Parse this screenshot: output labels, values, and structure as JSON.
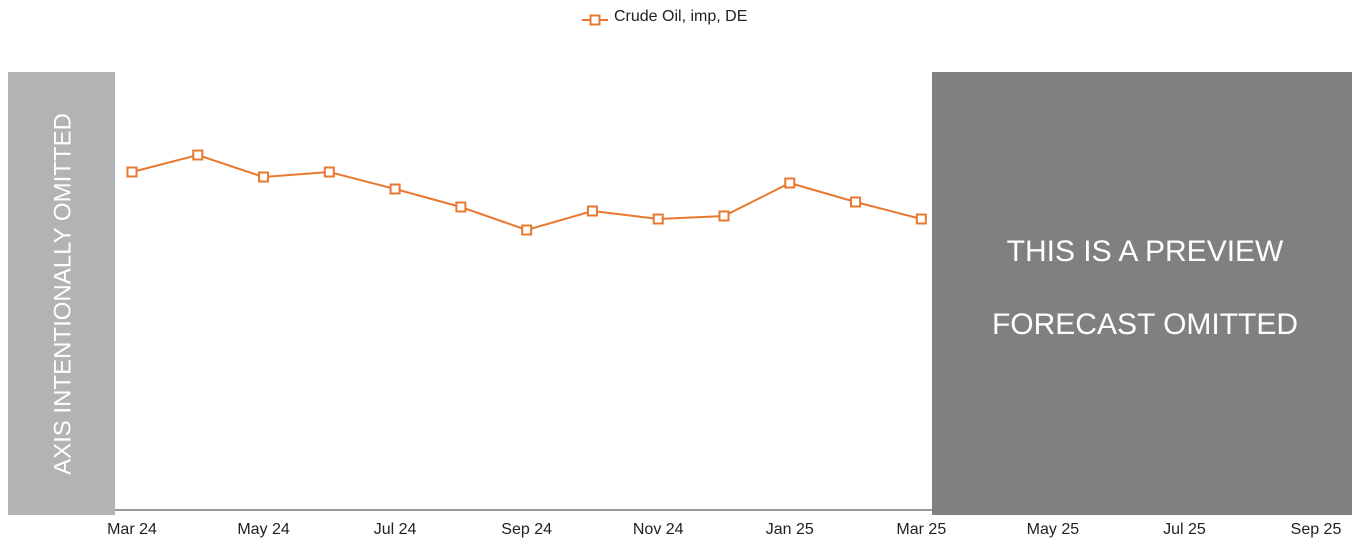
{
  "chart_data": {
    "type": "line",
    "categories": [
      "Mar 24",
      null,
      "May 24",
      null,
      "Jul 24",
      null,
      "Sep 24",
      null,
      "Nov 24",
      null,
      "Jan 25",
      null,
      "Mar 25",
      null,
      "May 25",
      null,
      "Jul 25",
      null,
      "Sep 25"
    ],
    "series": [
      {
        "name": "Crude Oil, imp, DE",
        "color": "#e8782f",
        "values": [
          338,
          355,
          333,
          338,
          321,
          303,
          280,
          299,
          291,
          294,
          327,
          308,
          291,
          null,
          null,
          null,
          null,
          null,
          null
        ]
      }
    ],
    "ylim": [
      0,
      438
    ],
    "annotations": [
      "AXIS INTENTIONALLY OMITTED",
      "THIS IS A PREVIEW",
      "FORECAST OMITTED"
    ]
  }
}
